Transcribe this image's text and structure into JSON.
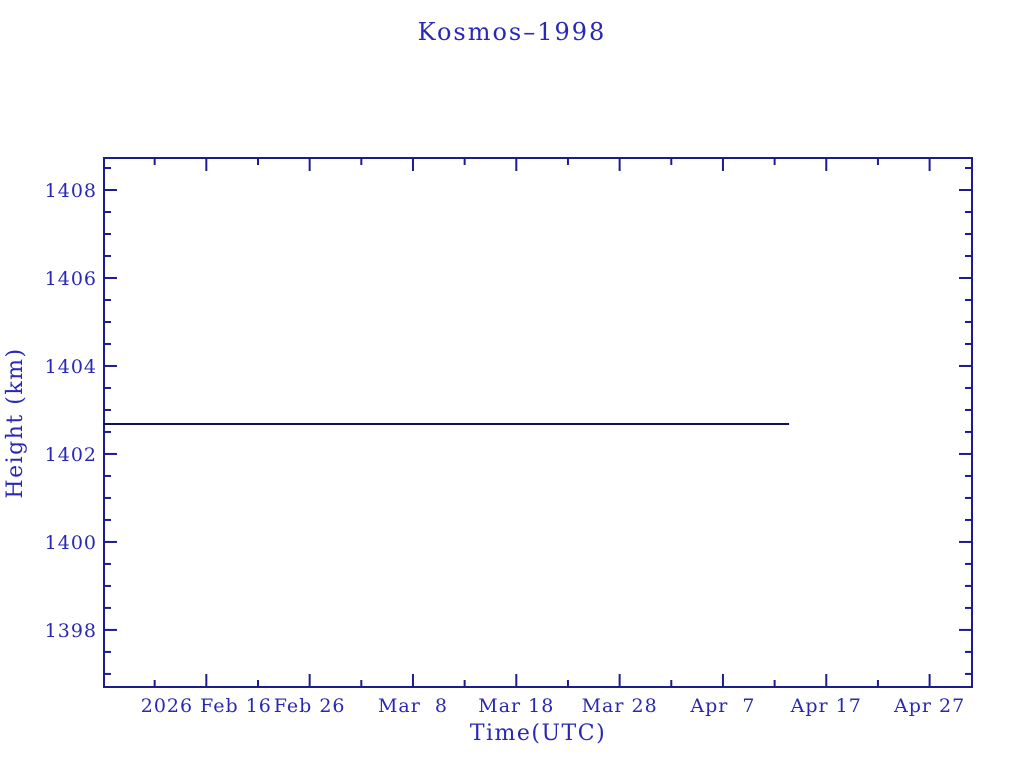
{
  "window": {
    "background": "#ffffff"
  },
  "colors": {
    "text": "#2828b4",
    "axis": "#1c1c8f",
    "data_line": "#12125a",
    "background": "#ffffff"
  },
  "chart_data": {
    "type": "line",
    "title": "Kosmos–1998",
    "xlabel": "Time(UTC)",
    "ylabel": "Height (km)",
    "grid": "off",
    "legend": "none",
    "x_axis": {
      "unit": "days from left edge (day 10 = 2026 Feb 16, majors every 10 days)",
      "range_days": [
        0,
        84.2
      ],
      "major_ticks": [
        {
          "day": 10,
          "label": "2026 Feb 16"
        },
        {
          "day": 20,
          "label": "Feb 26"
        },
        {
          "day": 30,
          "label": "Mar  8"
        },
        {
          "day": 40,
          "label": "Mar 18"
        },
        {
          "day": 50,
          "label": "Mar 28"
        },
        {
          "day": 60,
          "label": "Apr  7"
        },
        {
          "day": 70,
          "label": "Apr 17"
        },
        {
          "day": 80,
          "label": "Apr 27"
        }
      ],
      "minor_tick_days": [
        5,
        15,
        25,
        35,
        45,
        55,
        65,
        75
      ]
    },
    "y_axis": {
      "range_km": [
        1396.68,
        1408.75
      ],
      "major_ticks": [
        1398,
        1400,
        1402,
        1404,
        1406,
        1408
      ],
      "minor_step_km": 0.5
    },
    "series": [
      {
        "name": "height",
        "color": "#12125a",
        "points": [
          {
            "day": 0.0,
            "km": 1402.68
          },
          {
            "day": 66.4,
            "km": 1402.68
          }
        ]
      }
    ]
  }
}
